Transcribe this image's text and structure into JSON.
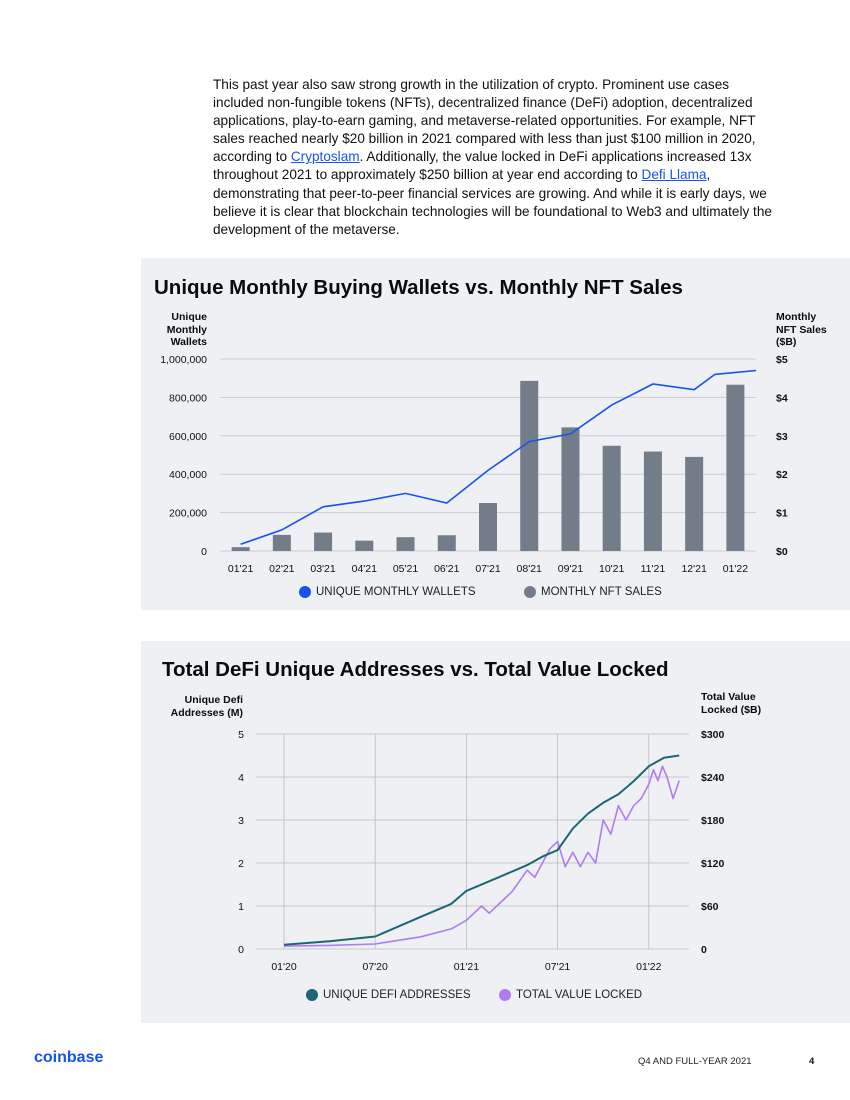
{
  "intro": {
    "p1": "This past year also saw strong growth in the utilization of crypto. Prominent use cases included non-fungible tokens (NFTs), decentralized finance (DeFi) adoption, decentralized applications, play-to-earn gaming, and metaverse-related opportunities. For example, NFT sales reached nearly $20 billion in 2021 compared with less than just $100 million in 2020, according to ",
    "link1": "Cryptoslam",
    "p2": ". Additionally, the value locked in DeFi applications increased 13x throughout 2021 to approximately $250 billion at year end according to ",
    "link2": "Defi Llama",
    "p3": ", demonstrating that peer-to-peer financial services are growing. And while it is early days, we believe it is clear that blockchain technologies will be foundational to Web3 and ultimately the development of the metaverse."
  },
  "chart_data": [
    {
      "type": "bar",
      "title": "Unique Monthly Buying Wallets vs. Monthly NFT Sales",
      "left_axis_label": [
        "Unique",
        "Monthly",
        "Wallets"
      ],
      "right_axis_label": [
        "Monthly",
        "NFT Sales",
        "($B)"
      ],
      "categories": [
        "01'21",
        "02'21",
        "03'21",
        "04'21",
        "05'21",
        "06'21",
        "07'21",
        "08'21",
        "09'21",
        "10'21",
        "11'21",
        "12'21",
        "01'22"
      ],
      "y_left_ticks": [
        "1,000,000",
        "800,000",
        "600,000",
        "400,000",
        "200,000",
        "0"
      ],
      "y_right_ticks": [
        "$5",
        "$4",
        "$3",
        "$2",
        "$1",
        "$0"
      ],
      "ylim_left": [
        0,
        1000000
      ],
      "ylim_right": [
        0,
        5
      ],
      "series": [
        {
          "name": "MONTHLY NFT SALES",
          "axis": "right",
          "kind": "bar",
          "color": "#737d8a",
          "values": [
            0.1,
            0.42,
            0.48,
            0.27,
            0.36,
            0.41,
            1.25,
            4.43,
            3.22,
            2.74,
            2.59,
            2.45,
            4.33
          ]
        },
        {
          "name": "UNIQUE MONTHLY WALLETS",
          "axis": "left",
          "kind": "line",
          "color": "#1652f0",
          "x": [
            0,
            1,
            2,
            3,
            4,
            5,
            6,
            7,
            8,
            9,
            10,
            11,
            11.5,
            12
          ],
          "values": [
            35000,
            110000,
            230000,
            260000,
            300000,
            250000,
            420000,
            570000,
            610000,
            760000,
            870000,
            840000,
            920000,
            940000
          ]
        }
      ],
      "legend": [
        {
          "label": "UNIQUE MONTHLY WALLETS",
          "color": "#1652f0"
        },
        {
          "label": "MONTHLY NFT SALES",
          "color": "#737d8a"
        }
      ],
      "grid": true
    },
    {
      "type": "line",
      "title": "Total DeFi Unique Addresses vs. Total Value Locked",
      "left_axis_label": [
        "Unique Defi",
        "Addresses (M)"
      ],
      "right_axis_label": [
        "Total Value",
        "Locked ($B)"
      ],
      "x_ticks": [
        "01'20",
        "07'20",
        "01'21",
        "07'21",
        "01'22"
      ],
      "y_left_ticks": [
        "5",
        "4",
        "3",
        "2",
        "1",
        "0"
      ],
      "y_right_ticks": [
        "$300",
        "$240",
        "$180",
        "$120",
        "$60",
        "0"
      ],
      "xlim_months": [
        0,
        26
      ],
      "ylim_left": [
        0,
        5
      ],
      "ylim_right": [
        0,
        300
      ],
      "series": [
        {
          "name": "UNIQUE DEFI ADDRESSES",
          "axis": "left",
          "color": "#1c6676",
          "x": [
            0,
            3,
            6,
            9,
            11,
            12,
            14,
            16,
            17,
            18,
            19,
            20,
            21,
            22,
            23,
            24,
            25,
            26
          ],
          "values": [
            0.1,
            0.18,
            0.29,
            0.75,
            1.05,
            1.35,
            1.65,
            1.95,
            2.15,
            2.3,
            2.8,
            3.15,
            3.4,
            3.6,
            3.9,
            4.25,
            4.45,
            4.5
          ]
        },
        {
          "name": "TOTAL VALUE LOCKED",
          "axis": "right",
          "color": "#b07cf0",
          "x": [
            0,
            3,
            6,
            9,
            11,
            12,
            13,
            13.5,
            14,
            15,
            16,
            16.5,
            17,
            17.5,
            18,
            18.5,
            19,
            19.5,
            20,
            20.5,
            21,
            21.5,
            22,
            22.5,
            23,
            23.5,
            24,
            24.3,
            24.6,
            24.9,
            25.2,
            25.6,
            26
          ],
          "values": [
            4,
            5,
            7,
            17,
            28,
            40,
            60,
            50,
            60,
            80,
            110,
            100,
            120,
            140,
            150,
            115,
            135,
            115,
            135,
            120,
            180,
            160,
            200,
            180,
            200,
            210,
            230,
            250,
            235,
            255,
            240,
            210,
            235
          ]
        }
      ],
      "legend": [
        {
          "label": "UNIQUE DEFI ADDRESSES",
          "color": "#1c6676"
        },
        {
          "label": "TOTAL VALUE LOCKED",
          "color": "#b07cf0"
        }
      ],
      "grid": true
    }
  ],
  "footer": {
    "logo": "coinbase",
    "report": "Q4 AND FULL-YEAR 2021",
    "page": "4"
  }
}
